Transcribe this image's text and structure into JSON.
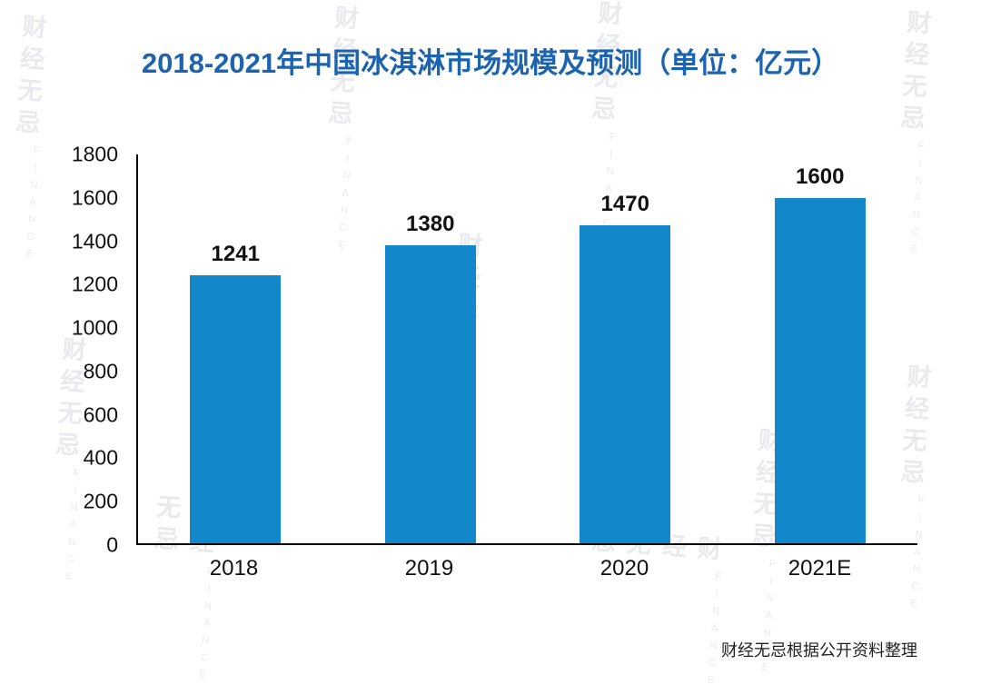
{
  "title": "2018-2021年中国冰淇淋市场规模及预测（单位：亿元）",
  "source_note": "财经无忌根据公开资料整理",
  "watermark": {
    "text": "财经无忌",
    "subtext": "FINANCE"
  },
  "colors": {
    "bar": "#1287c9",
    "title": "#1c63b0",
    "axis": "#000000"
  },
  "chart_data": {
    "type": "bar",
    "title": "2018-2021年中国冰淇淋市场规模及预测（单位：亿元）",
    "categories": [
      "2018",
      "2019",
      "2020",
      "2021E"
    ],
    "values": [
      1241,
      1380,
      1470,
      1600
    ],
    "xlabel": "",
    "ylabel": "",
    "ylim": [
      0,
      1800
    ],
    "yticks": [
      0,
      200,
      400,
      600,
      800,
      1000,
      1200,
      1400,
      1600,
      1800
    ],
    "grid": false,
    "legend": "none",
    "bar_color": "#1287c9",
    "value_labels": true
  }
}
